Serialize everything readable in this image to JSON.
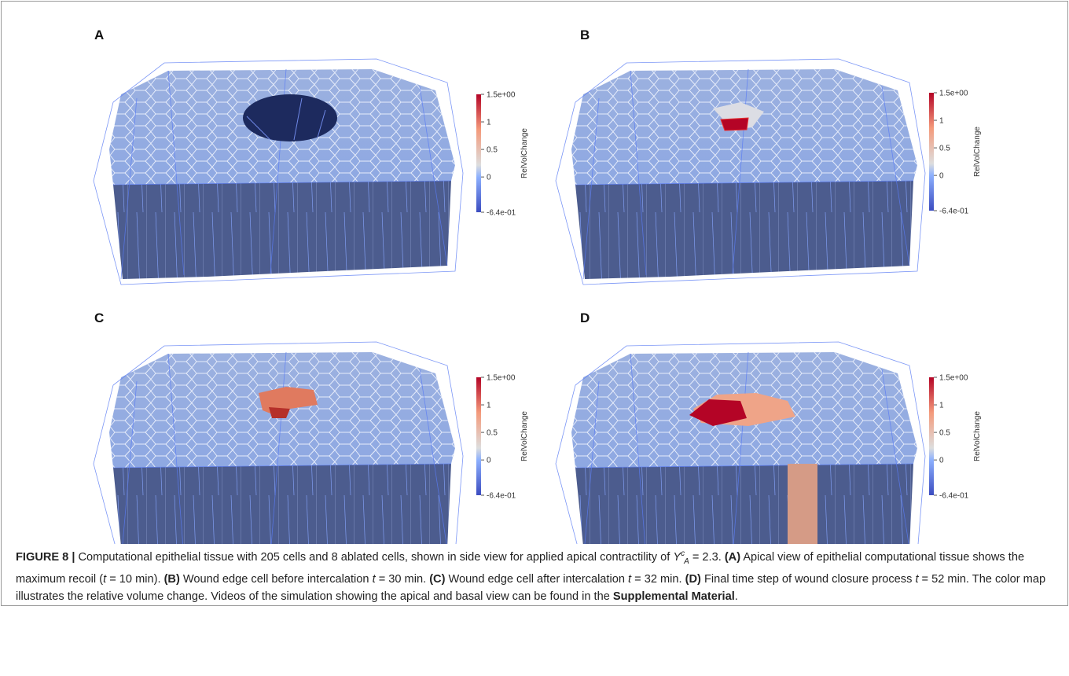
{
  "figure": {
    "panels": [
      {
        "label": "A",
        "colorbar": {
          "title": "RelVolChange",
          "ticks": [
            {
              "value": 1.5,
              "label": "1.5e+00"
            },
            1,
            0.5,
            0,
            {
              "value": -0.64,
              "label": "-6.4e-01"
            }
          ]
        }
      },
      {
        "label": "B",
        "colorbar": {
          "title": "RelVolChange",
          "ticks": [
            {
              "value": 1.5,
              "label": "1.5e+00"
            },
            1,
            0.5,
            0,
            {
              "value": -0.64,
              "label": "-6.4e-01"
            }
          ]
        }
      },
      {
        "label": "C",
        "colorbar": {
          "title": "RelVolChange",
          "ticks": [
            {
              "value": 1.5,
              "label": "1.5e+00"
            },
            1,
            0.5,
            0,
            {
              "value": -0.64,
              "label": "-6.4e-01"
            }
          ]
        }
      },
      {
        "label": "D",
        "colorbar": {
          "title": "RelVolChange",
          "ticks": [
            {
              "value": 1.5,
              "label": "1.5e+00"
            },
            1,
            0.5,
            0,
            {
              "value": -0.64,
              "label": "-6.4e-01"
            }
          ]
        }
      }
    ]
  },
  "caption": [
    {
      "text": "FIGURE 8 |",
      "style": "bold"
    },
    {
      "text": " Computational epithelial tissue with 205 cells and 8 ablated cells, shown in side view for applied apical contractility of ",
      "style": "normal"
    },
    {
      "text": "Υ",
      "style": "italic"
    },
    {
      "text": "c",
      "style": "sup"
    },
    {
      "text": "A",
      "style": "sub"
    },
    {
      "text": " = 2.3. ",
      "style": "normal"
    },
    {
      "text": "(A)",
      "style": "bold"
    },
    {
      "text": " Apical view of epithelial computational tissue shows the maximum recoil (",
      "style": "normal"
    },
    {
      "text": "t",
      "style": "italic"
    },
    {
      "text": " = 10 min). ",
      "style": "normal"
    },
    {
      "text": "(B)",
      "style": "bold"
    },
    {
      "text": " Wound edge cell before intercalation ",
      "style": "normal"
    },
    {
      "text": "t",
      "style": "italic"
    },
    {
      "text": " = 30 min. ",
      "style": "normal"
    },
    {
      "text": "(C)",
      "style": "bold"
    },
    {
      "text": " Wound edge cell after intercalation ",
      "style": "normal"
    },
    {
      "text": "t",
      "style": "italic"
    },
    {
      "text": " = 32 min. ",
      "style": "normal"
    },
    {
      "text": "(D)",
      "style": "bold"
    },
    {
      "text": " Final time step of wound closure process ",
      "style": "normal"
    },
    {
      "text": "t",
      "style": "italic"
    },
    {
      "text": " = 52 min. The color map illustrates the relative volume change. Videos of the simulation showing the apical and basal view can be found in the ",
      "style": "normal"
    },
    {
      "text": "Supplemental Material",
      "style": "bold"
    },
    {
      "text": ".",
      "style": "normal"
    }
  ]
}
